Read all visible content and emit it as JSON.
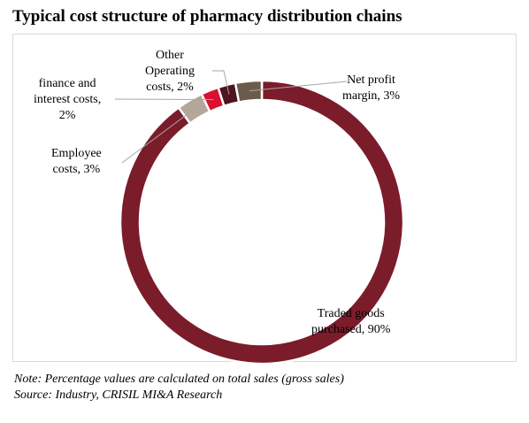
{
  "chart_data": {
    "type": "pie",
    "title": "Typical cost structure of pharmacy distribution chains",
    "categories": [
      "Traded goods purchased",
      "Employee costs",
      "finance and interest costs",
      "Other Operating costs",
      "Net profit margin"
    ],
    "values": [
      90,
      3,
      2,
      2,
      3
    ],
    "value_labels": [
      "90%",
      "3%",
      "2%",
      "2%",
      "3%"
    ],
    "label_texts": [
      [
        "Traded goods",
        "purchased, 90%"
      ],
      [
        "Employee",
        "costs, 3%"
      ],
      [
        "finance and",
        "interest costs,",
        "2%"
      ],
      [
        "Other",
        "Operating",
        "costs, 2%"
      ],
      [
        "Net profit",
        "margin, 3%"
      ]
    ],
    "colors": [
      "#7b1c2b",
      "#b4a698",
      "#d9102f",
      "#4e1420",
      "#6b5b4b"
    ],
    "donut": true
  },
  "notes": {
    "note": "Note: Percentage values are calculated on total sales (gross sales)",
    "source": "Source: Industry, CRISIL MI&A Research"
  }
}
